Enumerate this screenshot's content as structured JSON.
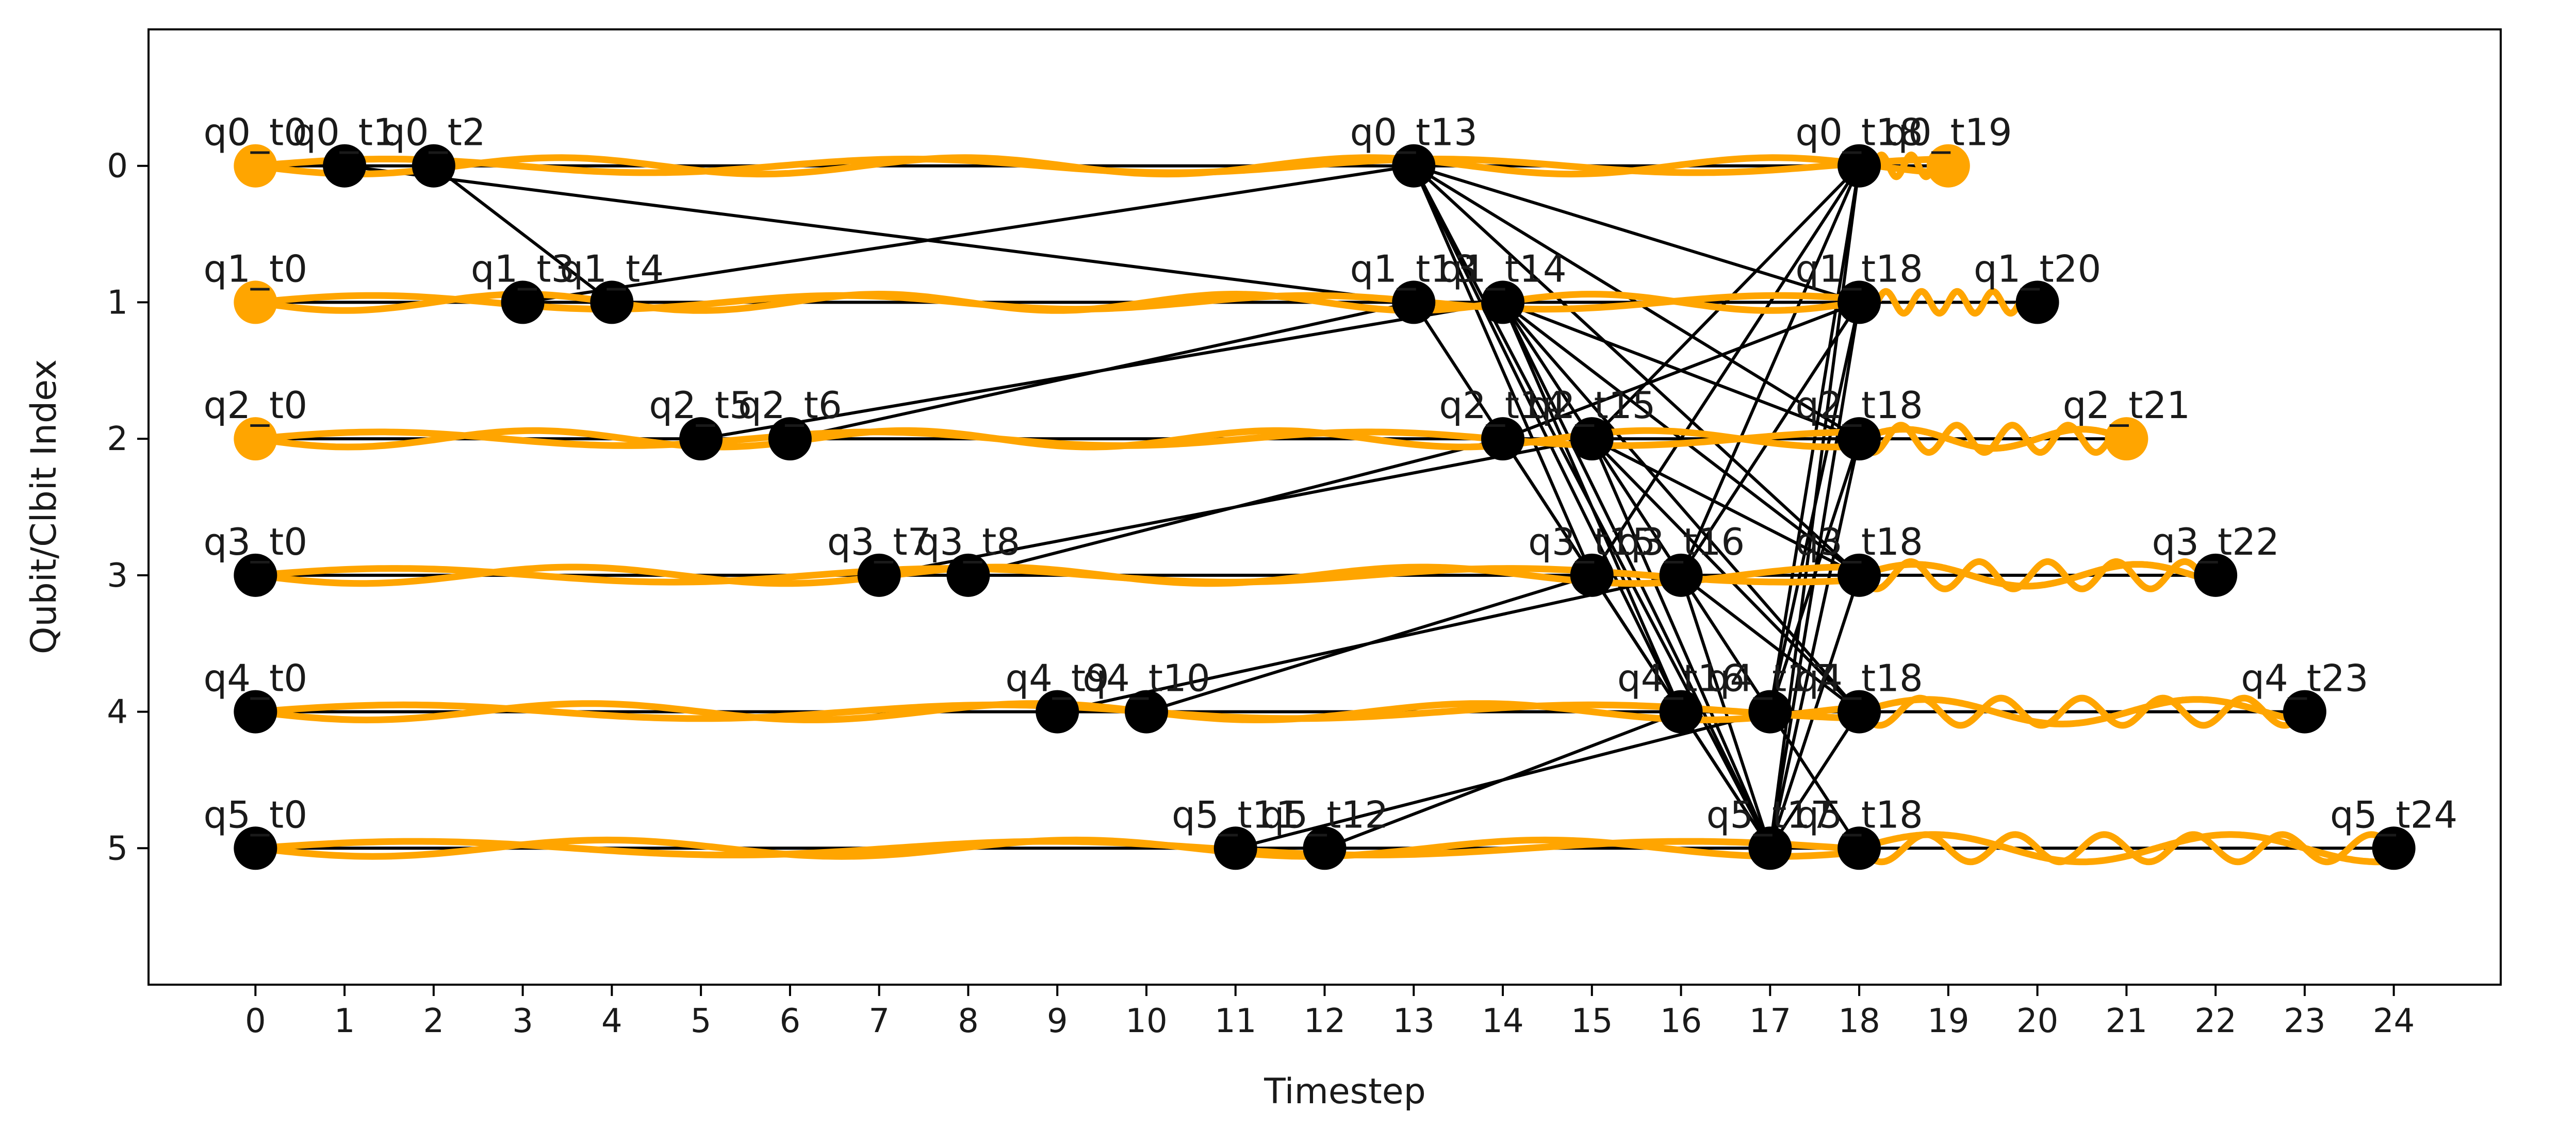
{
  "chart_data": {
    "type": "scatter",
    "xlabel": "Timestep",
    "ylabel": "Qubit/Clbit Index",
    "xlim": [
      -1.2,
      25.2
    ],
    "ylim": [
      6,
      -1
    ],
    "y_inverted": true,
    "xticks": [
      0,
      1,
      2,
      3,
      4,
      5,
      6,
      7,
      8,
      9,
      10,
      11,
      12,
      13,
      14,
      15,
      16,
      17,
      18,
      19,
      20,
      21,
      22,
      23,
      24
    ],
    "yticks": [
      0,
      1,
      2,
      3,
      4,
      5
    ],
    "grid": false,
    "legend": "none",
    "colors": {
      "orange": "#ffa500",
      "black": "#000000"
    },
    "nodes": [
      {
        "label": "q0_t0",
        "x": 0,
        "y": 0,
        "color": "orange"
      },
      {
        "label": "q0_t1",
        "x": 1,
        "y": 0,
        "color": "black"
      },
      {
        "label": "q0_t2",
        "x": 2,
        "y": 0,
        "color": "black"
      },
      {
        "label": "q0_t13",
        "x": 13,
        "y": 0,
        "color": "black"
      },
      {
        "label": "q0_t18",
        "x": 18,
        "y": 0,
        "color": "black"
      },
      {
        "label": "q0_t19",
        "x": 19,
        "y": 0,
        "color": "orange"
      },
      {
        "label": "q1_t0",
        "x": 0,
        "y": 1,
        "color": "orange"
      },
      {
        "label": "q1_t3",
        "x": 3,
        "y": 1,
        "color": "black"
      },
      {
        "label": "q1_t4",
        "x": 4,
        "y": 1,
        "color": "black"
      },
      {
        "label": "q1_t13",
        "x": 13,
        "y": 1,
        "color": "black"
      },
      {
        "label": "q1_t14",
        "x": 14,
        "y": 1,
        "color": "black"
      },
      {
        "label": "q1_t18",
        "x": 18,
        "y": 1,
        "color": "black"
      },
      {
        "label": "q1_t20",
        "x": 20,
        "y": 1,
        "color": "black"
      },
      {
        "label": "q2_t0",
        "x": 0,
        "y": 2,
        "color": "orange"
      },
      {
        "label": "q2_t5",
        "x": 5,
        "y": 2,
        "color": "black"
      },
      {
        "label": "q2_t6",
        "x": 6,
        "y": 2,
        "color": "black"
      },
      {
        "label": "q2_t14",
        "x": 14,
        "y": 2,
        "color": "black"
      },
      {
        "label": "q2_t15",
        "x": 15,
        "y": 2,
        "color": "black"
      },
      {
        "label": "q2_t18",
        "x": 18,
        "y": 2,
        "color": "black"
      },
      {
        "label": "q2_t21",
        "x": 21,
        "y": 2,
        "color": "orange"
      },
      {
        "label": "q3_t0",
        "x": 0,
        "y": 3,
        "color": "black"
      },
      {
        "label": "q3_t7",
        "x": 7,
        "y": 3,
        "color": "black"
      },
      {
        "label": "q3_t8",
        "x": 8,
        "y": 3,
        "color": "black"
      },
      {
        "label": "q3_t15",
        "x": 15,
        "y": 3,
        "color": "black"
      },
      {
        "label": "q3_t16",
        "x": 16,
        "y": 3,
        "color": "black"
      },
      {
        "label": "q3_t18",
        "x": 18,
        "y": 3,
        "color": "black"
      },
      {
        "label": "q3_t22",
        "x": 22,
        "y": 3,
        "color": "black"
      },
      {
        "label": "q4_t0",
        "x": 0,
        "y": 4,
        "color": "black"
      },
      {
        "label": "q4_t9",
        "x": 9,
        "y": 4,
        "color": "black"
      },
      {
        "label": "q4_t10",
        "x": 10,
        "y": 4,
        "color": "black"
      },
      {
        "label": "q4_t16",
        "x": 16,
        "y": 4,
        "color": "black"
      },
      {
        "label": "q4_t17",
        "x": 17,
        "y": 4,
        "color": "black"
      },
      {
        "label": "q4_t18",
        "x": 18,
        "y": 4,
        "color": "black"
      },
      {
        "label": "q4_t23",
        "x": 23,
        "y": 4,
        "color": "black"
      },
      {
        "label": "q5_t0",
        "x": 0,
        "y": 5,
        "color": "black"
      },
      {
        "label": "q5_t11",
        "x": 11,
        "y": 5,
        "color": "black"
      },
      {
        "label": "q5_t12",
        "x": 12,
        "y": 5,
        "color": "black"
      },
      {
        "label": "q5_t17",
        "x": 17,
        "y": 5,
        "color": "black"
      },
      {
        "label": "q5_t18",
        "x": 18,
        "y": 5,
        "color": "black"
      },
      {
        "label": "q5_t24",
        "x": 24,
        "y": 5,
        "color": "black"
      }
    ],
    "edges": [
      [
        0,
        0,
        1,
        0
      ],
      [
        1,
        0,
        2,
        0
      ],
      [
        2,
        0,
        13,
        0
      ],
      [
        13,
        0,
        18,
        0
      ],
      [
        18,
        0,
        19,
        0
      ],
      [
        0,
        1,
        3,
        1
      ],
      [
        3,
        1,
        4,
        1
      ],
      [
        4,
        1,
        13,
        1
      ],
      [
        13,
        1,
        14,
        1
      ],
      [
        14,
        1,
        18,
        1
      ],
      [
        18,
        1,
        20,
        1
      ],
      [
        0,
        2,
        5,
        2
      ],
      [
        5,
        2,
        6,
        2
      ],
      [
        6,
        2,
        14,
        2
      ],
      [
        14,
        2,
        15,
        2
      ],
      [
        15,
        2,
        18,
        2
      ],
      [
        18,
        2,
        21,
        2
      ],
      [
        0,
        3,
        7,
        3
      ],
      [
        7,
        3,
        8,
        3
      ],
      [
        8,
        3,
        15,
        3
      ],
      [
        15,
        3,
        16,
        3
      ],
      [
        16,
        3,
        18,
        3
      ],
      [
        18,
        3,
        22,
        3
      ],
      [
        0,
        4,
        9,
        4
      ],
      [
        9,
        4,
        10,
        4
      ],
      [
        10,
        4,
        16,
        4
      ],
      [
        16,
        4,
        17,
        4
      ],
      [
        17,
        4,
        18,
        4
      ],
      [
        18,
        4,
        23,
        4
      ],
      [
        0,
        5,
        11,
        5
      ],
      [
        11,
        5,
        12,
        5
      ],
      [
        12,
        5,
        17,
        5
      ],
      [
        17,
        5,
        18,
        5
      ],
      [
        18,
        5,
        24,
        5
      ],
      [
        2,
        0,
        4,
        1
      ],
      [
        1,
        0,
        13,
        1
      ],
      [
        3,
        1,
        13,
        0
      ],
      [
        6,
        2,
        13,
        1
      ],
      [
        5,
        2,
        14,
        1
      ],
      [
        8,
        3,
        14,
        2
      ],
      [
        7,
        3,
        15,
        2
      ],
      [
        10,
        4,
        15,
        3
      ],
      [
        9,
        4,
        16,
        3
      ],
      [
        12,
        5,
        16,
        4
      ],
      [
        11,
        5,
        17,
        4
      ],
      [
        13,
        0,
        17,
        5
      ],
      [
        13,
        0,
        16,
        4
      ],
      [
        13,
        0,
        18,
        1
      ],
      [
        13,
        0,
        18,
        2
      ],
      [
        13,
        0,
        18,
        3
      ],
      [
        14,
        1,
        17,
        5
      ],
      [
        14,
        1,
        16,
        4
      ],
      [
        14,
        1,
        18,
        2
      ],
      [
        14,
        1,
        18,
        3
      ],
      [
        14,
        1,
        18,
        4
      ],
      [
        15,
        2,
        17,
        5
      ],
      [
        15,
        2,
        18,
        3
      ],
      [
        15,
        2,
        18,
        4
      ],
      [
        15,
        2,
        18,
        0
      ],
      [
        16,
        3,
        17,
        5
      ],
      [
        16,
        3,
        18,
        0
      ],
      [
        16,
        3,
        18,
        1
      ],
      [
        16,
        3,
        18,
        4
      ],
      [
        17,
        5,
        18,
        0
      ],
      [
        17,
        5,
        18,
        1
      ],
      [
        17,
        5,
        18,
        2
      ],
      [
        17,
        5,
        18,
        3
      ],
      [
        17,
        5,
        18,
        4
      ],
      [
        17,
        4,
        18,
        0
      ],
      [
        17,
        4,
        18,
        1
      ],
      [
        17,
        4,
        18,
        2
      ],
      [
        17,
        4,
        18,
        5
      ],
      [
        15,
        3,
        17,
        5
      ],
      [
        15,
        3,
        18,
        0
      ],
      [
        14,
        2,
        17,
        5
      ],
      [
        14,
        2,
        18,
        1
      ],
      [
        13,
        0,
        15,
        3
      ],
      [
        14,
        1,
        17,
        4
      ],
      [
        13,
        1,
        17,
        5
      ]
    ],
    "wave_paths": [
      {
        "y": 0,
        "x_start": 0,
        "x_end": 19,
        "amp": 0.06,
        "freq": 0.22
      },
      {
        "y": 0,
        "x_start": 0,
        "x_end": 19,
        "amp": -0.05,
        "freq": 0.17
      },
      {
        "y": 0,
        "x_start": 18,
        "x_end": 19,
        "amp": 0.08,
        "freq": 3.0
      },
      {
        "y": 1,
        "x_start": 0,
        "x_end": 18,
        "amp": 0.06,
        "freq": 0.25
      },
      {
        "y": 1,
        "x_start": 0,
        "x_end": 18,
        "amp": -0.05,
        "freq": 0.19
      },
      {
        "y": 1,
        "x_start": 18,
        "x_end": 20,
        "amp": 0.08,
        "freq": 2.5
      },
      {
        "y": 2,
        "x_start": 0,
        "x_end": 18,
        "amp": 0.06,
        "freq": 0.24
      },
      {
        "y": 2,
        "x_start": 0,
        "x_end": 18,
        "amp": -0.05,
        "freq": 0.18
      },
      {
        "y": 2,
        "x_start": 18,
        "x_end": 21,
        "amp": 0.1,
        "freq": 1.6
      },
      {
        "y": 2,
        "x_start": 18,
        "x_end": 21,
        "amp": -0.07,
        "freq": 0.5
      },
      {
        "y": 3,
        "x_start": 0,
        "x_end": 18,
        "amp": 0.06,
        "freq": 0.21
      },
      {
        "y": 3,
        "x_start": 0,
        "x_end": 18,
        "amp": -0.05,
        "freq": 0.16
      },
      {
        "y": 3,
        "x_start": 18,
        "x_end": 22,
        "amp": 0.1,
        "freq": 1.3
      },
      {
        "y": 3,
        "x_start": 18,
        "x_end": 22,
        "amp": -0.08,
        "freq": 0.4
      },
      {
        "y": 4,
        "x_start": 0,
        "x_end": 18,
        "amp": 0.06,
        "freq": 0.2
      },
      {
        "y": 4,
        "x_start": 0,
        "x_end": 18,
        "amp": -0.05,
        "freq": 0.15
      },
      {
        "y": 4,
        "x_start": 18,
        "x_end": 23,
        "amp": 0.1,
        "freq": 1.1
      },
      {
        "y": 4,
        "x_start": 18,
        "x_end": 23,
        "amp": -0.09,
        "freq": 0.33
      },
      {
        "y": 5,
        "x_start": 0,
        "x_end": 18,
        "amp": 0.06,
        "freq": 0.19
      },
      {
        "y": 5,
        "x_start": 0,
        "x_end": 18,
        "amp": -0.05,
        "freq": 0.14
      },
      {
        "y": 5,
        "x_start": 18,
        "x_end": 24,
        "amp": 0.1,
        "freq": 1.0
      },
      {
        "y": 5,
        "x_start": 18,
        "x_end": 24,
        "amp": -0.1,
        "freq": 0.3
      }
    ]
  }
}
